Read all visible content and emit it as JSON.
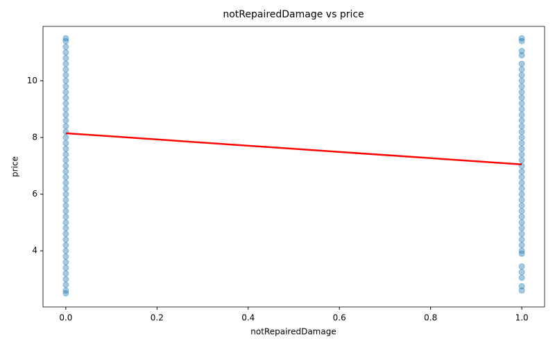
{
  "chart_data": {
    "type": "scatter",
    "title": "notRepairedDamage vs price",
    "x_label": "notRepairedDamage",
    "y_label": "price",
    "x": [
      0,
      0,
      0,
      0,
      0,
      0,
      0,
      0,
      0,
      0,
      0,
      0,
      0,
      0,
      0,
      0,
      0,
      0,
      0,
      0,
      0,
      0,
      0,
      0,
      0,
      0,
      0,
      0,
      0,
      0,
      0,
      0,
      0,
      0,
      0,
      0,
      0,
      0,
      0,
      0,
      0,
      0,
      0,
      0,
      0,
      0,
      0,
      1,
      1,
      1,
      1,
      1,
      1,
      1,
      1,
      1,
      1,
      1,
      1,
      1,
      1,
      1,
      1,
      1,
      1,
      1,
      1,
      1,
      1,
      1,
      1,
      1,
      1,
      1,
      1,
      1,
      1,
      1,
      1,
      1,
      1,
      1,
      1,
      1,
      1,
      1,
      1,
      1,
      1,
      1,
      1
    ],
    "values": [
      2.5,
      2.6,
      2.8,
      3.0,
      3.2,
      3.4,
      3.6,
      3.8,
      4.0,
      4.2,
      4.4,
      4.6,
      4.8,
      5.0,
      5.2,
      5.4,
      5.6,
      5.8,
      6.0,
      6.2,
      6.4,
      6.6,
      6.8,
      7.0,
      7.2,
      7.4,
      7.6,
      7.8,
      8.0,
      8.2,
      8.4,
      8.6,
      8.8,
      9.0,
      9.2,
      9.4,
      9.6,
      9.8,
      10.0,
      10.2,
      10.4,
      10.6,
      10.8,
      11.0,
      11.2,
      11.4,
      11.5,
      2.6,
      2.75,
      3.05,
      3.25,
      3.45,
      3.9,
      4.0,
      4.2,
      4.4,
      4.6,
      4.8,
      5.0,
      5.2,
      5.4,
      5.6,
      5.8,
      6.0,
      6.2,
      6.4,
      6.6,
      6.8,
      7.0,
      7.2,
      7.4,
      7.6,
      7.8,
      8.0,
      8.2,
      8.4,
      8.6,
      8.8,
      9.0,
      9.2,
      9.4,
      9.6,
      9.8,
      10.0,
      10.2,
      10.4,
      10.6,
      10.9,
      11.05,
      11.4,
      11.5
    ],
    "color": "#1f77b4",
    "trend_line": {
      "x": [
        0,
        1
      ],
      "values": [
        8.15,
        7.05
      ],
      "color": "#ff0000"
    },
    "xlim": [
      -0.05,
      1.05
    ],
    "ylim": [
      2.02,
      11.92
    ],
    "xticks": [
      {
        "value": 0,
        "label": "0.0"
      },
      {
        "value": 0.2,
        "label": "0.2"
      },
      {
        "value": 0.4,
        "label": "0.4"
      },
      {
        "value": 0.6,
        "label": "0.6"
      },
      {
        "value": 0.8,
        "label": "0.8"
      },
      {
        "value": 1,
        "label": "1.0"
      }
    ],
    "yticks": [
      4,
      6,
      8,
      10
    ]
  }
}
